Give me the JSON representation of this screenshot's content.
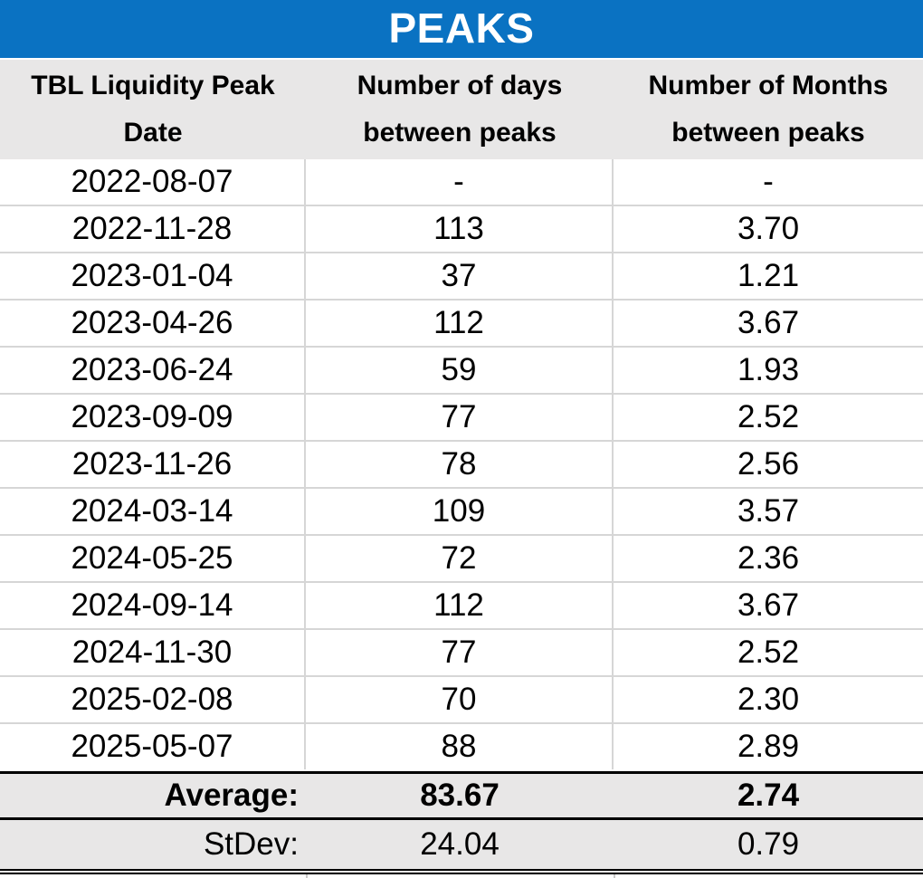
{
  "title": "PEAKS",
  "columns": [
    {
      "line1": "TBL Liquidity Peak",
      "line2": "Date"
    },
    {
      "line1": "Number of days",
      "line2": "between peaks"
    },
    {
      "line1": "Number of Months",
      "line2": "between peaks"
    }
  ],
  "rows": [
    {
      "date": "2022-08-07",
      "days": "-",
      "months": "-"
    },
    {
      "date": "2022-11-28",
      "days": "113",
      "months": "3.70"
    },
    {
      "date": "2023-01-04",
      "days": "37",
      "months": "1.21"
    },
    {
      "date": "2023-04-26",
      "days": "112",
      "months": "3.67"
    },
    {
      "date": "2023-06-24",
      "days": "59",
      "months": "1.93"
    },
    {
      "date": "2023-09-09",
      "days": "77",
      "months": "2.52"
    },
    {
      "date": "2023-11-26",
      "days": "78",
      "months": "2.56"
    },
    {
      "date": "2024-03-14",
      "days": "109",
      "months": "3.57"
    },
    {
      "date": "2024-05-25",
      "days": "72",
      "months": "2.36"
    },
    {
      "date": "2024-09-14",
      "days": "112",
      "months": "3.67"
    },
    {
      "date": "2024-11-30",
      "days": "77",
      "months": "2.52"
    },
    {
      "date": "2025-02-08",
      "days": "70",
      "months": "2.30"
    },
    {
      "date": "2025-05-07",
      "days": "88",
      "months": "2.89"
    }
  ],
  "summary": {
    "average_label": "Average:",
    "average_days": "83.67",
    "average_months": "2.74",
    "stdev_label": "StDev:",
    "stdev_days": "24.04",
    "stdev_months": "0.79"
  },
  "colors": {
    "accent_blue": "#0a72c2",
    "band_gray": "#e8e7e7",
    "gridline_gray": "#d6d6d6",
    "border_black": "#000000",
    "title_text": "#ffffff"
  }
}
